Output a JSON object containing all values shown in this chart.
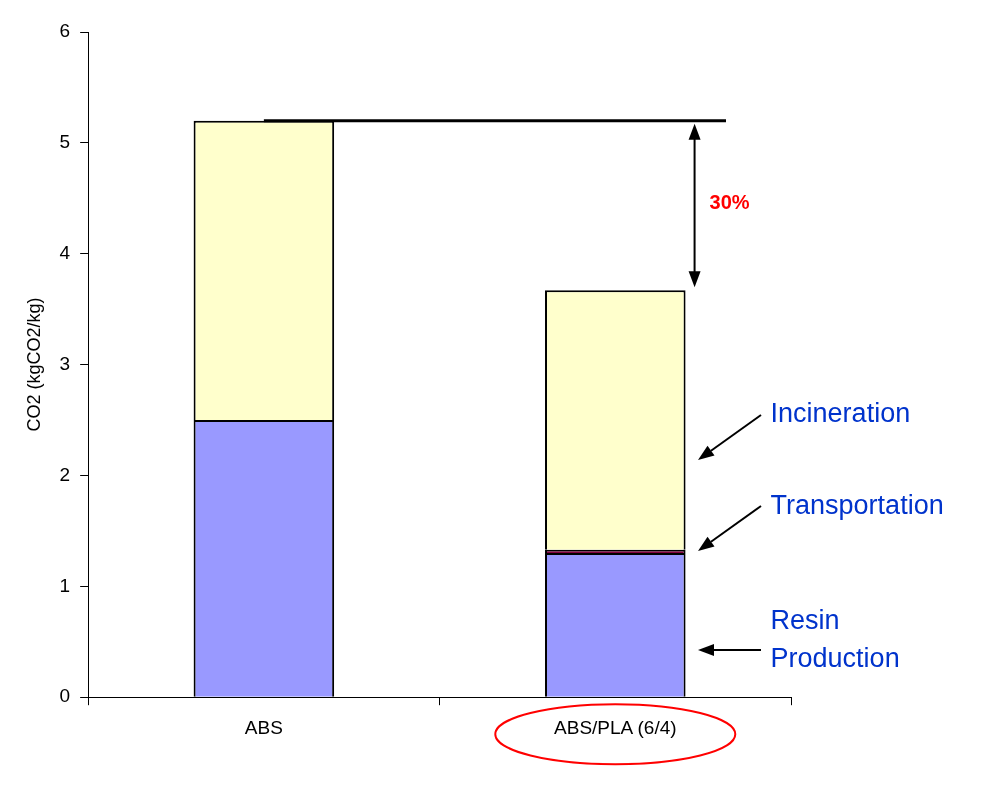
{
  "chart_data": {
    "type": "bar",
    "stacked": true,
    "ylabel": "CO2 (kgCO2/kg)",
    "categories": [
      "ABS",
      "ABS/PLA (6/4)"
    ],
    "series": [
      {
        "name": "Resin Production",
        "color": "#9999ff",
        "values": [
          2.5,
          1.3
        ]
      },
      {
        "name": "Transportation",
        "color": "#800040",
        "values": [
          0,
          0.03
        ]
      },
      {
        "name": "Incineration",
        "color": "#ffffcc",
        "values": [
          2.7,
          2.34
        ]
      }
    ],
    "ylim": [
      0,
      6
    ],
    "yticks": [
      0,
      1,
      2,
      3,
      4,
      5,
      6
    ],
    "grid": false,
    "legend": false,
    "ref_lines": [
      {
        "axis": "y",
        "value": 5.2,
        "color": "#000000"
      }
    ],
    "annotations": [
      "30%"
    ]
  }
}
